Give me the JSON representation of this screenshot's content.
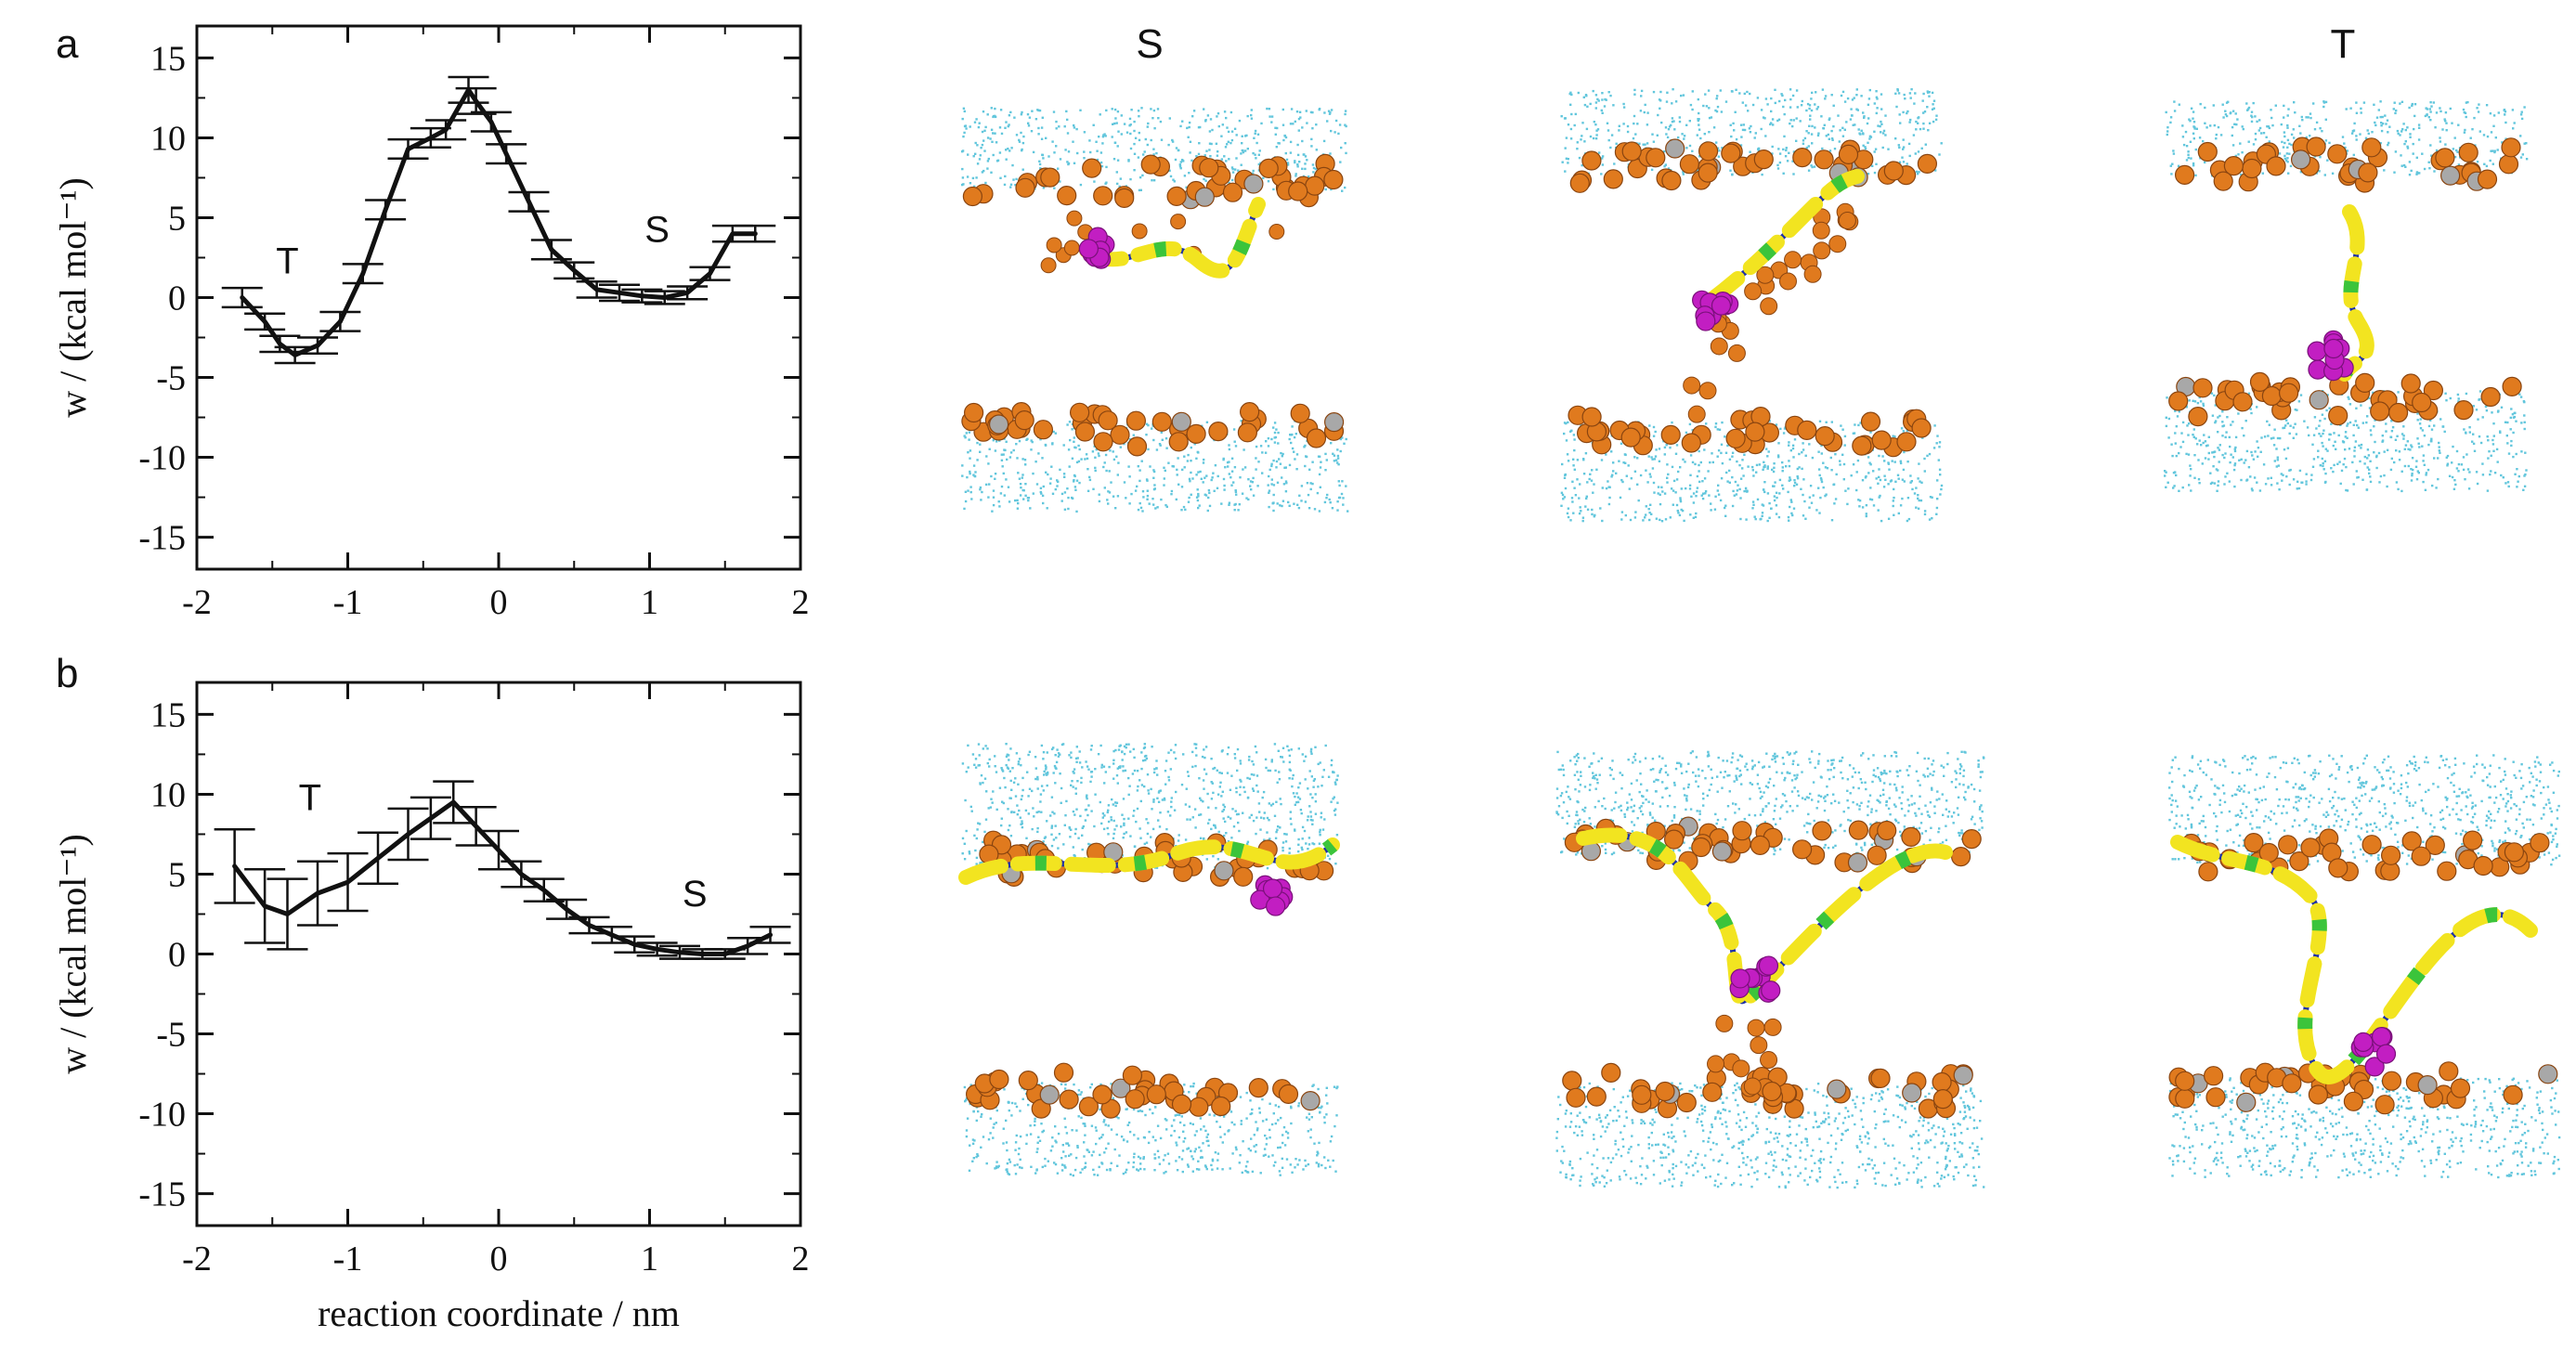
{
  "chart_data": [
    {
      "type": "line",
      "panel": "a",
      "xlabel": "",
      "ylabel": "w / (kcal mol⁻¹)",
      "xlim": [
        -2,
        2
      ],
      "ylim": [
        -17,
        17
      ],
      "xticks": [
        -2,
        -1,
        0,
        1,
        2
      ],
      "yticks": [
        -15,
        -10,
        -5,
        0,
        5,
        10,
        15
      ],
      "xtick_labels": [
        "-2",
        "-1",
        "0",
        "1",
        "2"
      ],
      "ytick_labels": [
        "-15",
        "-10",
        "-5",
        "0",
        "5",
        "10",
        "15"
      ],
      "x": [
        -1.7,
        -1.55,
        -1.45,
        -1.35,
        -1.2,
        -1.05,
        -0.9,
        -0.75,
        -0.6,
        -0.45,
        -0.35,
        -0.2,
        -0.15,
        -0.05,
        0.05,
        0.2,
        0.35,
        0.5,
        0.65,
        0.8,
        0.95,
        1.1,
        1.25,
        1.4,
        1.55,
        1.7
      ],
      "y": [
        0.0,
        -1.5,
        -2.9,
        -3.6,
        -3.0,
        -1.5,
        1.5,
        5.5,
        9.3,
        10.0,
        10.5,
        13.0,
        12.3,
        11.0,
        9.0,
        6.0,
        3.0,
        1.7,
        0.5,
        0.3,
        0.1,
        0.0,
        0.3,
        1.5,
        4.0,
        4.0
      ],
      "err": [
        0.6,
        0.5,
        0.5,
        0.5,
        0.5,
        0.6,
        0.6,
        0.6,
        0.6,
        0.6,
        0.6,
        0.8,
        0.8,
        0.6,
        0.6,
        0.6,
        0.6,
        0.5,
        0.5,
        0.5,
        0.4,
        0.4,
        0.4,
        0.4,
        0.5,
        0.5
      ],
      "annotations": [
        {
          "text": "T",
          "x": -1.4,
          "y": 1.5
        },
        {
          "text": "S",
          "x": 1.05,
          "y": 3.5
        }
      ]
    },
    {
      "type": "line",
      "panel": "b",
      "xlabel": "reaction coordinate / nm",
      "ylabel": "w / (kcal mol⁻¹)",
      "xlim": [
        -2,
        2
      ],
      "ylim": [
        -17,
        17
      ],
      "xticks": [
        -2,
        -1,
        0,
        1,
        2
      ],
      "yticks": [
        -15,
        -10,
        -5,
        0,
        5,
        10,
        15
      ],
      "xtick_labels": [
        "-2",
        "-1",
        "0",
        "1",
        "2"
      ],
      "ytick_labels": [
        "-15",
        "-10",
        "-5",
        "0",
        "5",
        "10",
        "15"
      ],
      "x": [
        -1.75,
        -1.55,
        -1.4,
        -1.2,
        -1.0,
        -0.8,
        -0.6,
        -0.45,
        -0.3,
        -0.15,
        0.0,
        0.15,
        0.3,
        0.45,
        0.6,
        0.75,
        0.9,
        1.05,
        1.2,
        1.35,
        1.5,
        1.65,
        1.8
      ],
      "y": [
        5.5,
        3.0,
        2.5,
        3.8,
        4.5,
        6.0,
        7.5,
        8.5,
        9.5,
        8.0,
        6.5,
        5.0,
        4.0,
        2.8,
        1.8,
        1.2,
        0.6,
        0.3,
        0.1,
        0.0,
        0.0,
        0.5,
        1.2
      ],
      "err": [
        2.3,
        2.3,
        2.2,
        2.0,
        1.8,
        1.6,
        1.6,
        1.3,
        1.3,
        1.2,
        1.2,
        0.8,
        0.7,
        0.6,
        0.5,
        0.5,
        0.5,
        0.4,
        0.4,
        0.3,
        0.3,
        0.5,
        0.5
      ],
      "annotations": [
        {
          "text": "T",
          "x": -1.25,
          "y": 9.0
        },
        {
          "text": "S",
          "x": 1.3,
          "y": 3.0
        }
      ]
    }
  ],
  "figure": {
    "panel_a_letter": "a",
    "panel_b_letter": "b",
    "column_labels": [
      "S",
      "",
      "T"
    ]
  },
  "snapshot_colors": {
    "water": "#62c6dc",
    "lipid_head": "#e07a1e",
    "lipid_head_gray": "#a8a8a8",
    "residue": "#c21ec2",
    "helix_yellow": "#f2e420",
    "helix_green": "#3bc43b",
    "coil_blue": "#1c2fa8"
  },
  "snapshots": [
    {
      "row": 0,
      "col": 0,
      "name": "snapshot-a-S"
    },
    {
      "row": 0,
      "col": 1,
      "name": "snapshot-a-mid"
    },
    {
      "row": 0,
      "col": 2,
      "name": "snapshot-a-T"
    },
    {
      "row": 1,
      "col": 0,
      "name": "snapshot-b-S"
    },
    {
      "row": 1,
      "col": 1,
      "name": "snapshot-b-mid"
    },
    {
      "row": 1,
      "col": 2,
      "name": "snapshot-b-T"
    }
  ]
}
